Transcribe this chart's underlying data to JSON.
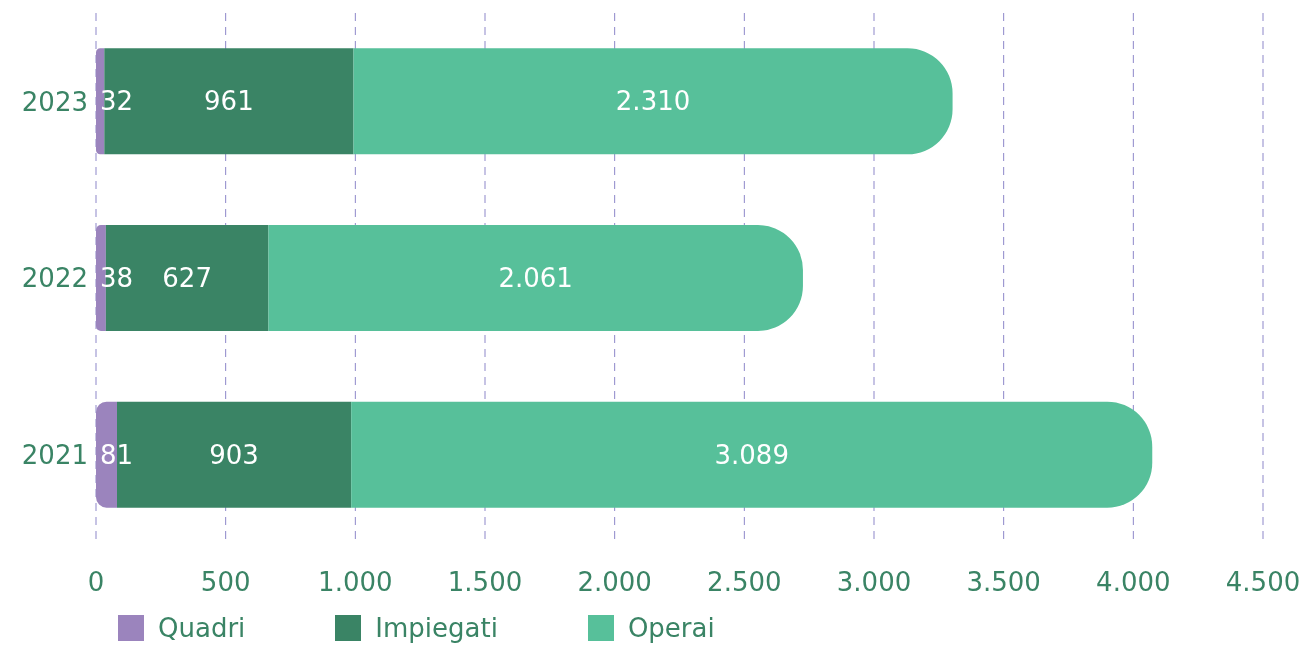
{
  "chart_data": {
    "type": "bar",
    "orientation": "horizontal",
    "stacked": true,
    "categories": [
      "2023",
      "2022",
      "2021"
    ],
    "series": [
      {
        "name": "Quadri",
        "color": "#9b84bd",
        "values": [
          32,
          38,
          81
        ],
        "value_labels": [
          "32",
          "38",
          "81"
        ]
      },
      {
        "name": "Impiegati",
        "color": "#3a8465",
        "values": [
          961,
          627,
          903
        ],
        "value_labels": [
          "961",
          "627",
          "903"
        ]
      },
      {
        "name": "Operai",
        "color": "#57c09a",
        "values": [
          2310,
          2061,
          3089
        ],
        "value_labels": [
          "2.310",
          "2.061",
          "3.089"
        ]
      }
    ],
    "xlim": [
      0,
      4500
    ],
    "xticks": [
      0,
      500,
      {
        "value": 1000,
        "label": "1.000"
      },
      {
        "value": 1500,
        "label": "1.500"
      },
      {
        "value": 2000,
        "label": "2.000"
      },
      {
        "value": 2500,
        "label": "2.500"
      },
      {
        "value": 3000,
        "label": "3.000"
      },
      {
        "value": 3500,
        "label": "3.500"
      },
      {
        "value": 4000,
        "label": "4.000"
      },
      {
        "value": 4500,
        "label": "4.500"
      }
    ],
    "grid": "x",
    "legend": "bottom"
  }
}
